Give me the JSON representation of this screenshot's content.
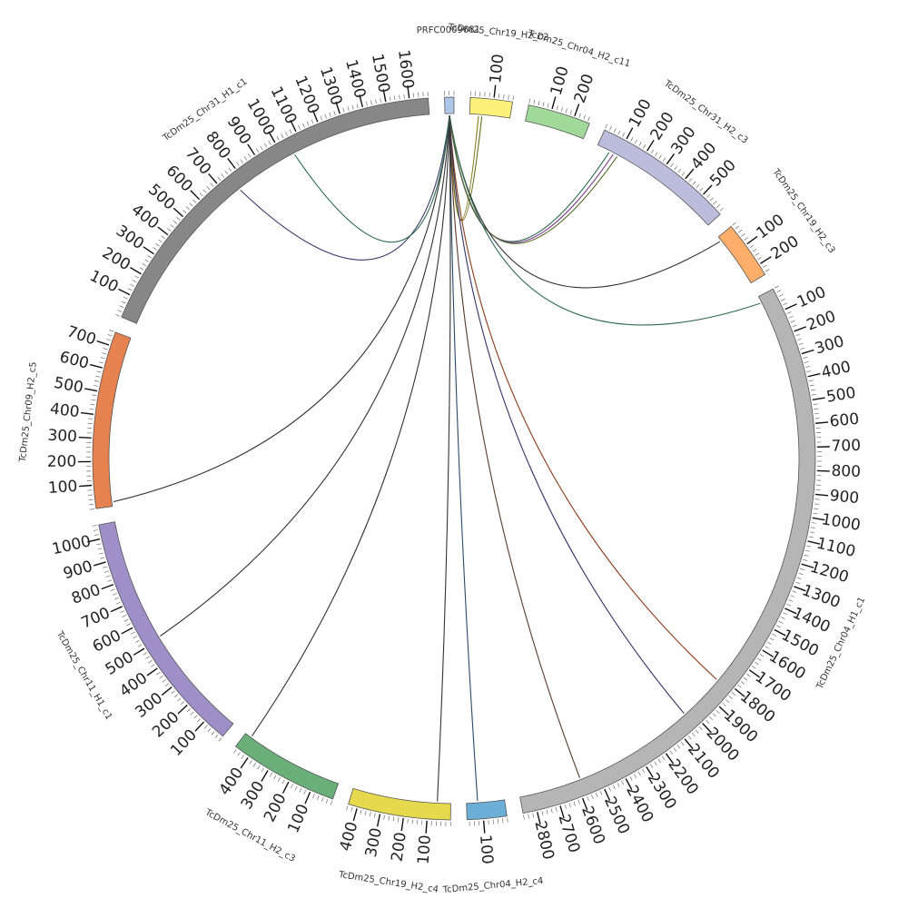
{
  "chart_data": {
    "type": "circos",
    "title": "",
    "segments": [
      {
        "name": "PRFC0009681",
        "length": 40,
        "color": "#aec7e8",
        "ticks": []
      },
      {
        "name": "TcDm25_Chr19_H2_c2",
        "length": 180,
        "color": "#fdf17a",
        "ticks": [
          "100"
        ]
      },
      {
        "name": "TcDm25_Chr04_H2_c11",
        "length": 270,
        "color": "#a1d99b",
        "ticks": [
          "100",
          "200"
        ]
      },
      {
        "name": "TcDm25_Chr31_H2_c3",
        "length": 610,
        "color": "#bcbddc",
        "ticks": [
          "100",
          "200",
          "300",
          "400",
          "500"
        ]
      },
      {
        "name": "TcDm25_Chr19_H2_c3",
        "length": 250,
        "color": "#fdae6b",
        "ticks": [
          "100",
          "200"
        ]
      },
      {
        "name": "TcDm25_Chr04_H1_c1",
        "length": 2860,
        "color": "#b5b5b5",
        "ticks": [
          "100",
          "200",
          "300",
          "400",
          "500",
          "600",
          "700",
          "800",
          "900",
          "1000",
          "1100",
          "1200",
          "1300",
          "1400",
          "1500",
          "1600",
          "1700",
          "1800",
          "1900",
          "2000",
          "2100",
          "2200",
          "2300",
          "2400",
          "2500",
          "2600",
          "2700",
          "2800"
        ]
      },
      {
        "name": "TcDm25_Chr04_H2_c4",
        "length": 170,
        "color": "#6baed6",
        "ticks": [
          "100"
        ]
      },
      {
        "name": "TcDm25_Chr19_H2_c4",
        "length": 440,
        "color": "#e7d94e",
        "ticks": [
          "100",
          "200",
          "300",
          "400"
        ]
      },
      {
        "name": "TcDm25_Chr11_H2_c3",
        "length": 470,
        "color": "#6aaf7a",
        "ticks": [
          "100",
          "200",
          "300",
          "400"
        ]
      },
      {
        "name": "TcDm25_Chr11_H1_c1",
        "length": 1060,
        "color": "#9e8fc8",
        "ticks": [
          "100",
          "200",
          "300",
          "400",
          "500",
          "600",
          "700",
          "800",
          "900",
          "1000"
        ]
      },
      {
        "name": "TcDm25_Chr09_H2_c5",
        "length": 760,
        "color": "#e6824f",
        "ticks": [
          "100",
          "200",
          "300",
          "400",
          "500",
          "600",
          "700"
        ]
      },
      {
        "name": "TcDm25_Chr31_H1_c1",
        "length": 1680,
        "color": "#878787",
        "ticks": [
          "100",
          "200",
          "300",
          "400",
          "500",
          "600",
          "700",
          "800",
          "900",
          "1000",
          "1100",
          "1200",
          "1300",
          "1400",
          "1500",
          "1600"
        ]
      }
    ],
    "links": [
      {
        "source": "PRFC0009681",
        "target": "TcDm25_Chr19_H2_c2",
        "target_pos": 40,
        "color": "#8a7d1a"
      },
      {
        "source": "PRFC0009681",
        "target": "TcDm25_Chr19_H2_c2",
        "target_pos": 55,
        "color": "#6b6b1f"
      },
      {
        "source": "PRFC0009681",
        "target": "TcDm25_Chr31_H2_c3",
        "target_pos": 60,
        "color": "#2f6b4f"
      },
      {
        "source": "PRFC0009681",
        "target": "TcDm25_Chr31_H2_c3",
        "target_pos": 80,
        "color": "#7a3b8c"
      },
      {
        "source": "PRFC0009681",
        "target": "TcDm25_Chr31_H2_c3",
        "target_pos": 100,
        "color": "#556b2f"
      },
      {
        "source": "PRFC0009681",
        "target": "TcDm25_Chr19_H2_c3",
        "target_pos": 20,
        "color": "#333333"
      },
      {
        "source": "PRFC0009681",
        "target": "TcDm25_Chr04_H1_c1",
        "target_pos": 30,
        "color": "#2f6b4f"
      },
      {
        "source": "PRFC0009681",
        "target": "TcDm25_Chr04_H1_c1",
        "target_pos": 1820,
        "color": "#8b3a1a"
      },
      {
        "source": "PRFC0009681",
        "target": "TcDm25_Chr04_H1_c1",
        "target_pos": 2030,
        "color": "#333366"
      },
      {
        "source": "PRFC0009681",
        "target": "TcDm25_Chr04_H1_c1",
        "target_pos": 2580,
        "color": "#5a3a2a"
      },
      {
        "source": "PRFC0009681",
        "target": "TcDm25_Chr04_H2_c4",
        "target_pos": 120,
        "color": "#2a4a6a"
      },
      {
        "source": "PRFC0009681",
        "target": "TcDm25_Chr19_H2_c4",
        "target_pos": 60,
        "color": "#333333"
      },
      {
        "source": "PRFC0009681",
        "target": "TcDm25_Chr11_H2_c3",
        "target_pos": 440,
        "color": "#333333"
      },
      {
        "source": "PRFC0009681",
        "target": "TcDm25_Chr11_H1_c1",
        "target_pos": 510,
        "color": "#333333"
      },
      {
        "source": "PRFC0009681",
        "target": "TcDm25_Chr09_H2_c5",
        "target_pos": 20,
        "color": "#333333"
      },
      {
        "source": "PRFC0009681",
        "target": "TcDm25_Chr31_H1_c1",
        "target_pos": 760,
        "color": "#3a3a6a"
      },
      {
        "source": "PRFC0009681",
        "target": "TcDm25_Chr31_H1_c1",
        "target_pos": 1050,
        "color": "#2f6b4f"
      }
    ]
  }
}
